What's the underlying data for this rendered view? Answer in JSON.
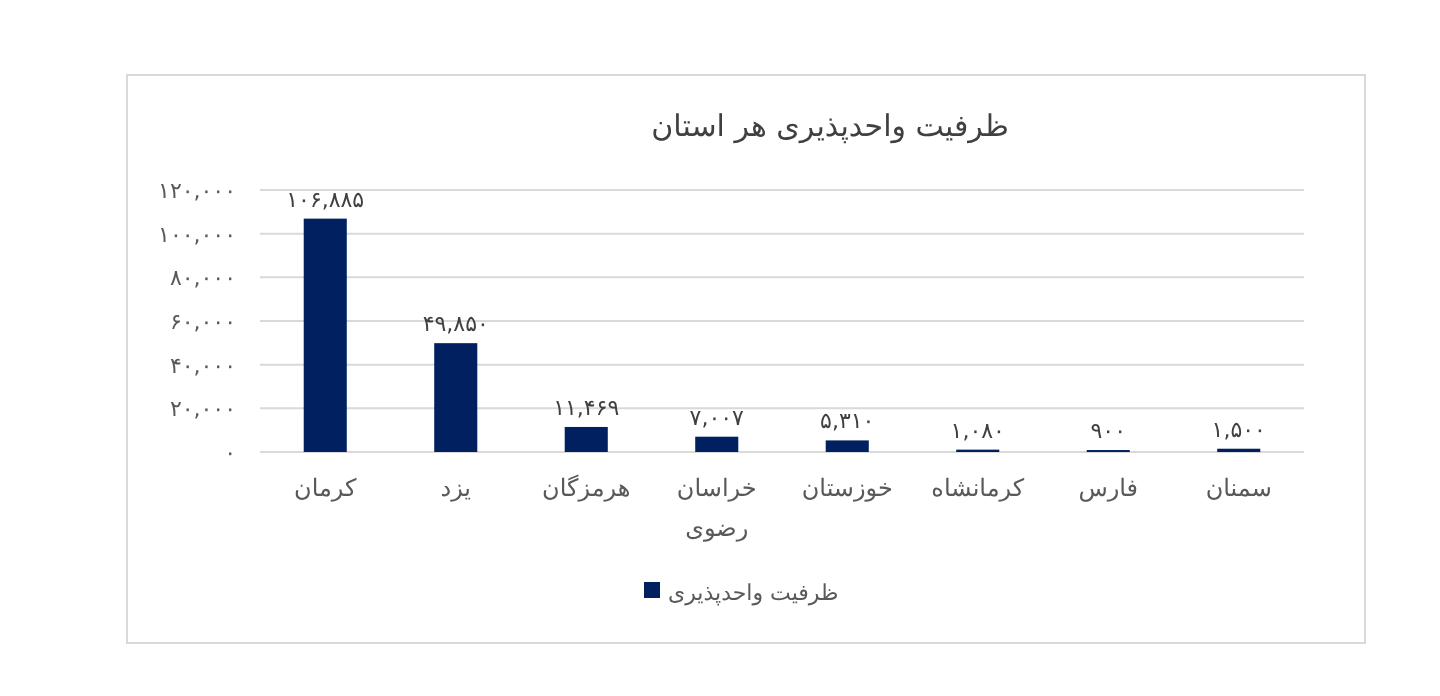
{
  "chart_data": {
    "type": "bar",
    "title": "ظرفیت واحدپذیری هر استان",
    "categories": [
      "کرمان",
      "یزد",
      "هرمزگان",
      "خراسان رضوی",
      "خوزستان",
      "کرمانشاه",
      "فارس",
      "سمنان"
    ],
    "series": [
      {
        "name": "ظرفیت واحدپذیری",
        "color": "#002060",
        "values": [
          106885,
          49850,
          11469,
          7007,
          5310,
          1080,
          900,
          1500
        ],
        "value_labels": [
          "۱۰۶,۸۸۵",
          "۴۹,۸۵۰",
          "۱۱,۴۶۹",
          "۷,۰۰۷",
          "۵,۳۱۰",
          "۱,۰۸۰",
          "۹۰۰",
          "۱,۵۰۰"
        ]
      }
    ],
    "ylim": [
      0,
      120000
    ],
    "yticks": [
      {
        "value": 0,
        "label": "۰"
      },
      {
        "value": 20000,
        "label": "۲۰,۰۰۰"
      },
      {
        "value": 40000,
        "label": "۴۰,۰۰۰"
      },
      {
        "value": 60000,
        "label": "۶۰,۰۰۰"
      },
      {
        "value": 80000,
        "label": "۸۰,۰۰۰"
      },
      {
        "value": 100000,
        "label": "۱۰۰,۰۰۰"
      },
      {
        "value": 120000,
        "label": "۱۲۰,۰۰۰"
      }
    ],
    "grid": "y",
    "legend": "bottom"
  }
}
